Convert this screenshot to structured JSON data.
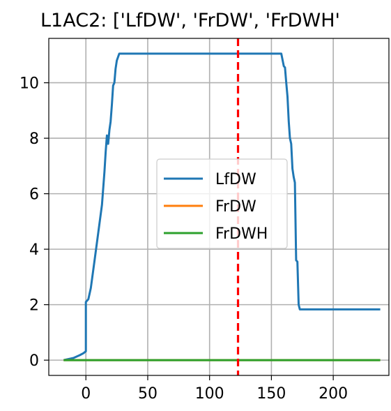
{
  "chart_data": {
    "type": "line",
    "title": "L1AC2: ['LfDW', 'FrDW', 'FrDWH'",
    "xlabel": "",
    "ylabel": "",
    "xlim": [
      -30,
      245
    ],
    "ylim": [
      -0.55,
      11.6
    ],
    "xticks": [
      0,
      50,
      100,
      150,
      200
    ],
    "xtick_labels": [
      "0",
      "50",
      "100",
      "150",
      "200"
    ],
    "yticks": [
      0,
      2,
      4,
      6,
      8,
      10
    ],
    "ytick_labels": [
      "0",
      "2",
      "4",
      "6",
      "8",
      "10"
    ],
    "grid": true,
    "legend_placement": "center-right",
    "vline": {
      "x": 123,
      "color": "#ff0000",
      "style": "dashed"
    },
    "series": [
      {
        "name": "LfDW",
        "color": "#1f77b4",
        "x": [
          -18,
          -10,
          -5,
          -2,
          0,
          0,
          2,
          4,
          7,
          10,
          13,
          15,
          16,
          17,
          18,
          19,
          20,
          21,
          22,
          23,
          24,
          25,
          27,
          29,
          31,
          158,
          160,
          161,
          162,
          163,
          164,
          165,
          166,
          167,
          168,
          169,
          170,
          171,
          172,
          173,
          174,
          175,
          180,
          238
        ],
        "y": [
          0.0,
          0.08,
          0.18,
          0.25,
          0.32,
          2.1,
          2.2,
          2.6,
          3.6,
          4.6,
          5.6,
          6.8,
          7.5,
          8.1,
          7.8,
          8.3,
          8.6,
          9.2,
          9.9,
          10.0,
          10.5,
          10.8,
          11.05,
          11.05,
          11.05,
          11.05,
          10.6,
          10.55,
          10.0,
          9.5,
          8.6,
          8.0,
          7.8,
          6.9,
          6.6,
          6.4,
          3.6,
          3.55,
          2.0,
          1.83,
          1.83,
          1.83,
          1.83,
          1.83
        ]
      },
      {
        "name": "FrDW",
        "color": "#ff7f0e",
        "x": [
          -18,
          238
        ],
        "y": [
          0,
          0
        ]
      },
      {
        "name": "FrDWH",
        "color": "#2ca02c",
        "x": [
          -18,
          238
        ],
        "y": [
          0,
          0
        ]
      }
    ]
  }
}
